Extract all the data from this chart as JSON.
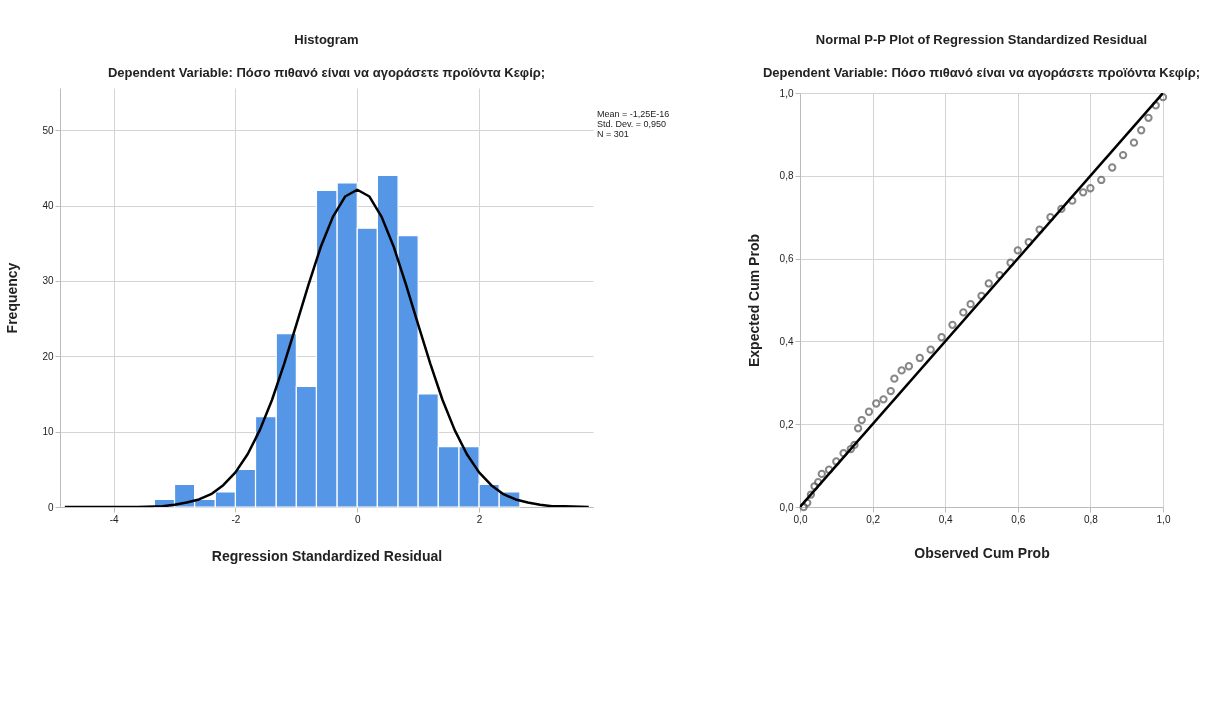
{
  "chart_data": [
    {
      "type": "histogram",
      "title": "Histogram",
      "subtitle": "Dependent Variable: Πόσο πιθανό είναι να αγοράσετε προϊόντα Κεφίρ;",
      "xlabel": "Regression Standardized Residual",
      "ylabel": "Frequency",
      "bins": [
        -3.33,
        -3.0,
        -2.67,
        -2.33,
        -2.0,
        -1.67,
        -1.33,
        -1.0,
        -0.67,
        -0.33,
        0,
        0.33,
        0.67,
        1.0,
        1.33,
        1.67,
        2.0,
        2.33,
        2.67
      ],
      "values": [
        1,
        3,
        1,
        2,
        5,
        12,
        23,
        16,
        42,
        43,
        37,
        44,
        36,
        15,
        8,
        8,
        3,
        2
      ],
      "color": "#5596e6",
      "series": [
        {
          "type": "line",
          "color": "#000000",
          "x": [
            -4.8,
            -4.4,
            -4.0,
            -3.6,
            -3.2,
            -3.0,
            -2.8,
            -2.6,
            -2.4,
            -2.2,
            -2.0,
            -1.8,
            -1.6,
            -1.4,
            -1.2,
            -1.0,
            -0.8,
            -0.6,
            -0.4,
            -0.2,
            0,
            0.2,
            0.4,
            0.6,
            0.8,
            1.0,
            1.2,
            1.4,
            1.6,
            1.8,
            2.0,
            2.2,
            2.4,
            2.6,
            2.8,
            3.0,
            3.2,
            3.4,
            3.8
          ],
          "values": [
            0,
            0,
            0,
            0,
            0.1,
            0.3,
            0.6,
            1.0,
            1.7,
            2.9,
            4.6,
            7.0,
            10.2,
            14.2,
            19.0,
            24.2,
            29.5,
            34.5,
            38.5,
            41.2,
            42.1,
            41.2,
            38.5,
            34.5,
            29.5,
            24.2,
            19.0,
            14.2,
            10.2,
            7.0,
            4.6,
            2.9,
            1.7,
            1.0,
            0.6,
            0.3,
            0.1,
            0.1,
            0
          ]
        }
      ],
      "xlim": [
        -4.88,
        3.87
      ],
      "ylim": [
        0,
        55.6
      ],
      "xticks": [
        -4,
        -2,
        0,
        2
      ],
      "yticks": [
        0,
        10,
        20,
        30,
        40,
        50
      ],
      "grid": true,
      "annotations": [
        "Mean = -1,25E-16",
        "Std. Dev. = 0,950",
        "N = 301"
      ]
    },
    {
      "type": "scatter",
      "title": "Normal P-P Plot of Regression Standardized Residual",
      "subtitle": "Dependent Variable: Πόσο πιθανό είναι να αγοράσετε προϊόντα Κεφίρ;",
      "xlabel": "Observed Cum Prob",
      "ylabel": "Expected Cum Prob",
      "series": [
        {
          "type": "scatter",
          "marker": "circle",
          "color": "#555555",
          "x": [
            0.01,
            0.02,
            0.03,
            0.04,
            0.05,
            0.06,
            0.08,
            0.1,
            0.12,
            0.14,
            0.15,
            0.16,
            0.17,
            0.19,
            0.21,
            0.23,
            0.25,
            0.26,
            0.28,
            0.3,
            0.33,
            0.36,
            0.39,
            0.42,
            0.45,
            0.47,
            0.5,
            0.52,
            0.55,
            0.58,
            0.6,
            0.63,
            0.66,
            0.69,
            0.72,
            0.75,
            0.78,
            0.8,
            0.83,
            0.86,
            0.89,
            0.92,
            0.94,
            0.96,
            0.98,
            1.0
          ],
          "values": [
            0.0,
            0.01,
            0.03,
            0.05,
            0.06,
            0.08,
            0.09,
            0.11,
            0.13,
            0.14,
            0.15,
            0.19,
            0.21,
            0.23,
            0.25,
            0.26,
            0.28,
            0.31,
            0.33,
            0.34,
            0.36,
            0.38,
            0.41,
            0.44,
            0.47,
            0.49,
            0.51,
            0.54,
            0.56,
            0.59,
            0.62,
            0.64,
            0.67,
            0.7,
            0.72,
            0.74,
            0.76,
            0.77,
            0.79,
            0.82,
            0.85,
            0.88,
            0.91,
            0.94,
            0.97,
            0.99
          ]
        },
        {
          "type": "line",
          "color": "#000000",
          "x": [
            0,
            1
          ],
          "values": [
            0,
            1
          ]
        }
      ],
      "xlim": [
        0,
        1
      ],
      "ylim": [
        0,
        1
      ],
      "xticks": [
        {
          "value": 0,
          "label": "0,0"
        },
        {
          "value": 0.2,
          "label": "0,2"
        },
        {
          "value": 0.4,
          "label": "0,4"
        },
        {
          "value": 0.6,
          "label": "0,6"
        },
        {
          "value": 0.8,
          "label": "0,8"
        },
        {
          "value": 1,
          "label": "1,0"
        }
      ],
      "yticks": [
        {
          "value": 0,
          "label": "0,0"
        },
        {
          "value": 0.2,
          "label": "0,2"
        },
        {
          "value": 0.4,
          "label": "0,4"
        },
        {
          "value": 0.6,
          "label": "0,6"
        },
        {
          "value": 0.8,
          "label": "0,8"
        },
        {
          "value": 1,
          "label": "1,0"
        }
      ],
      "grid": true
    }
  ]
}
